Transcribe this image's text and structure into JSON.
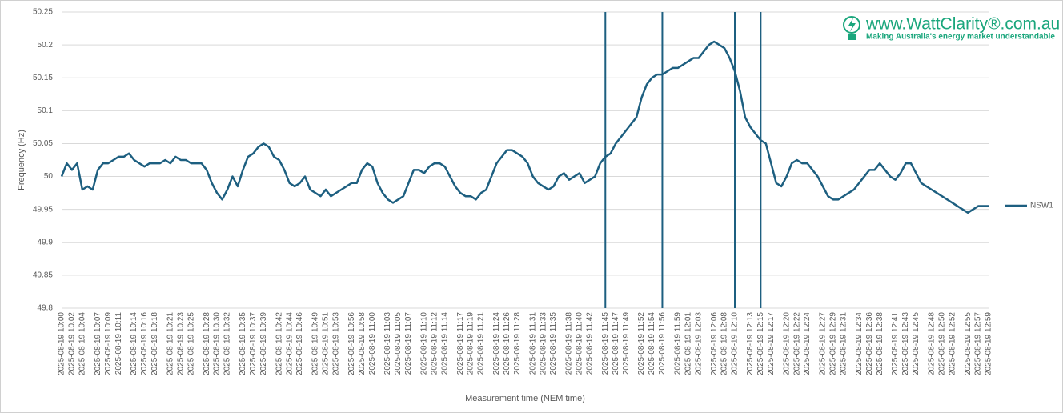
{
  "chart_data": {
    "type": "line",
    "y_label": "Frequency (Hz)",
    "x_label": "Measurement time (NEM time)",
    "ylim": [
      49.8,
      50.25
    ],
    "yticks": [
      49.8,
      49.85,
      49.9,
      49.95,
      50,
      50.05,
      50.1,
      50.15,
      50.2,
      50.25
    ],
    "grid": true,
    "legend": "right",
    "categories": [
      "2025-08-19 10:00",
      null,
      "2025-08-19 10:02",
      null,
      "2025-08-19 10:04",
      null,
      null,
      "2025-08-19 10:07",
      null,
      "2025-08-19 10:09",
      null,
      "2025-08-19 10:11",
      null,
      null,
      "2025-08-19 10:14",
      null,
      "2025-08-19 10:16",
      null,
      "2025-08-19 10:18",
      null,
      null,
      "2025-08-19 10:21",
      null,
      "2025-08-19 10:23",
      null,
      "2025-08-19 10:25",
      null,
      null,
      "2025-08-19 10:28",
      null,
      "2025-08-19 10:30",
      null,
      "2025-08-19 10:32",
      null,
      null,
      "2025-08-19 10:35",
      null,
      "2025-08-19 10:37",
      null,
      "2025-08-19 10:39",
      null,
      null,
      "2025-08-19 10:42",
      null,
      "2025-08-19 10:44",
      null,
      "2025-08-19 10:46",
      null,
      null,
      "2025-08-19 10:49",
      null,
      "2025-08-19 10:51",
      null,
      "2025-08-19 10:53",
      null,
      null,
      "2025-08-19 10:56",
      null,
      "2025-08-19 10:58",
      null,
      "2025-08-19 11:00",
      null,
      null,
      "2025-08-19 11:03",
      null,
      "2025-08-19 11:05",
      null,
      "2025-08-19 11:07",
      null,
      null,
      "2025-08-19 11:10",
      null,
      "2025-08-19 11:12",
      null,
      "2025-08-19 11:14",
      null,
      null,
      "2025-08-19 11:17",
      null,
      "2025-08-19 11:19",
      null,
      "2025-08-19 11:21",
      null,
      null,
      "2025-08-19 11:24",
      null,
      "2025-08-19 11:26",
      null,
      "2025-08-19 11:28",
      null,
      null,
      "2025-08-19 11:31",
      null,
      "2025-08-19 11:33",
      null,
      "2025-08-19 11:35",
      null,
      null,
      "2025-08-19 11:38",
      null,
      "2025-08-19 11:40",
      null,
      "2025-08-19 11:42",
      null,
      null,
      "2025-08-19 11:45",
      null,
      "2025-08-19 11:47",
      null,
      "2025-08-19 11:49",
      null,
      null,
      "2025-08-19 11:52",
      null,
      "2025-08-19 11:54",
      null,
      "2025-08-19 11:56",
      null,
      null,
      "2025-08-19 11:59",
      null,
      "2025-08-19 12:01",
      null,
      "2025-08-19 12:03",
      null,
      null,
      "2025-08-19 12:06",
      null,
      "2025-08-19 12:08",
      null,
      "2025-08-19 12:10",
      null,
      null,
      "2025-08-19 12:13",
      null,
      "2025-08-19 12:15",
      null,
      "2025-08-19 12:17",
      null,
      null,
      "2025-08-19 12:20",
      null,
      "2025-08-19 12:22",
      null,
      "2025-08-19 12:24",
      null,
      null,
      "2025-08-19 12:27",
      null,
      "2025-08-19 12:29",
      null,
      "2025-08-19 12:31",
      null,
      null,
      "2025-08-19 12:34",
      null,
      "2025-08-19 12:36",
      null,
      "2025-08-19 12:38",
      null,
      null,
      "2025-08-19 12:41",
      null,
      "2025-08-19 12:43",
      null,
      "2025-08-19 12:45",
      null,
      null,
      "2025-08-19 12:48",
      null,
      "2025-08-19 12:50",
      null,
      "2025-08-19 12:52",
      null,
      null,
      "2025-08-19 12:55",
      null,
      "2025-08-19 12:57",
      null,
      "2025-08-19 12:59"
    ],
    "series": [
      {
        "name": "NSW1",
        "color": "#1d5f80",
        "values": [
          50.0,
          50.02,
          50.01,
          50.02,
          49.98,
          49.985,
          49.98,
          50.01,
          50.02,
          50.02,
          50.025,
          50.03,
          50.03,
          50.035,
          50.025,
          50.02,
          50.015,
          50.02,
          50.02,
          50.02,
          50.025,
          50.02,
          50.03,
          50.025,
          50.025,
          50.02,
          50.02,
          50.02,
          50.01,
          49.99,
          49.975,
          49.965,
          49.98,
          50.0,
          49.985,
          50.01,
          50.03,
          50.035,
          50.045,
          50.05,
          50.045,
          50.03,
          50.025,
          50.01,
          49.99,
          49.985,
          49.99,
          50.0,
          49.98,
          49.975,
          49.97,
          49.98,
          49.97,
          49.975,
          49.98,
          49.985,
          49.99,
          49.99,
          50.01,
          50.02,
          50.015,
          49.99,
          49.975,
          49.965,
          49.96,
          49.965,
          49.97,
          49.99,
          50.01,
          50.01,
          50.005,
          50.015,
          50.02,
          50.02,
          50.015,
          50.0,
          49.985,
          49.975,
          49.97,
          49.97,
          49.965,
          49.975,
          49.98,
          50.0,
          50.02,
          50.03,
          50.04,
          50.04,
          50.035,
          50.03,
          50.02,
          50.0,
          49.99,
          49.985,
          49.98,
          49.985,
          50.0,
          50.005,
          49.995,
          50.0,
          50.005,
          49.99,
          49.995,
          50.0,
          50.02,
          50.03,
          50.035,
          50.05,
          50.06,
          50.07,
          50.08,
          50.09,
          50.12,
          50.14,
          50.15,
          50.155,
          50.155,
          50.16,
          50.165,
          50.165,
          50.17,
          50.175,
          50.18,
          50.18,
          50.19,
          50.2,
          50.205,
          50.2,
          50.195,
          50.18,
          50.16,
          50.13,
          50.09,
          50.075,
          50.065,
          50.055,
          50.05,
          50.02,
          49.99,
          49.985,
          50.0,
          50.02,
          50.025,
          50.02,
          50.02,
          50.01,
          50.0,
          49.985,
          49.97,
          49.965,
          49.965,
          49.97,
          49.975,
          49.98,
          49.99,
          50.0,
          50.01,
          50.01,
          50.02,
          50.01,
          50.0,
          49.995,
          50.005,
          50.02,
          50.02,
          50.005,
          49.99,
          49.985,
          49.98,
          49.975,
          49.97,
          49.965,
          49.96,
          49.955,
          49.95,
          49.945,
          49.95,
          49.955,
          49.955,
          49.955
        ]
      }
    ],
    "vlines": [
      "2025-08-19 11:45",
      "2025-08-19 11:56",
      "2025-08-19 12:10",
      "2025-08-19 12:15"
    ]
  },
  "logo": {
    "site": "www.WattClarity®.com.au",
    "tagline": "Making Australia's energy market understandable"
  }
}
